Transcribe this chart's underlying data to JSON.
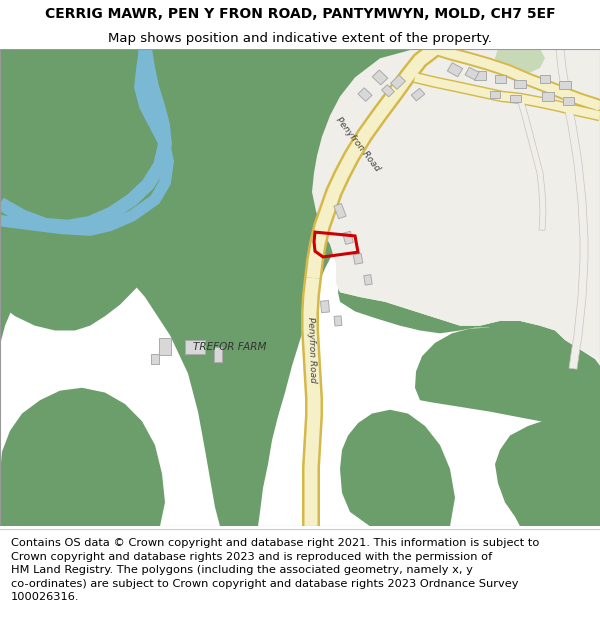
{
  "title": "CERRIG MAWR, PEN Y FRON ROAD, PANTYMWYN, MOLD, CH7 5EF",
  "subtitle": "Map shows position and indicative extent of the property.",
  "footer_line1": "Contains OS data © Crown copyright and database right 2021. This information is subject to",
  "footer_line2": "Crown copyright and database rights 2023 and is reproduced with the permission of",
  "footer_line3": "HM Land Registry. The polygons (including the associated geometry, namely x, y",
  "footer_line4": "co-ordinates) are subject to Crown copyright and database rights 2023 Ordnance Survey",
  "footer_line5": "100026316.",
  "bg_color": "#ffffff",
  "map_bg": "#f2f0eb",
  "green_color": "#6b9e6b",
  "light_green": "#c8d9b8",
  "road_fill": "#f5f0c8",
  "road_border": "#d4b84a",
  "road_label_color": "#444444",
  "water_color": "#7ab8d4",
  "plot_color": "#cc0000",
  "building_fill": "#d8d8d8",
  "building_edge": "#aaaaaa",
  "gray_road_fill": "#f0eeea",
  "gray_road_edge": "#c8c5be",
  "title_fontsize": 10,
  "subtitle_fontsize": 9.5,
  "footer_fontsize": 8.2
}
